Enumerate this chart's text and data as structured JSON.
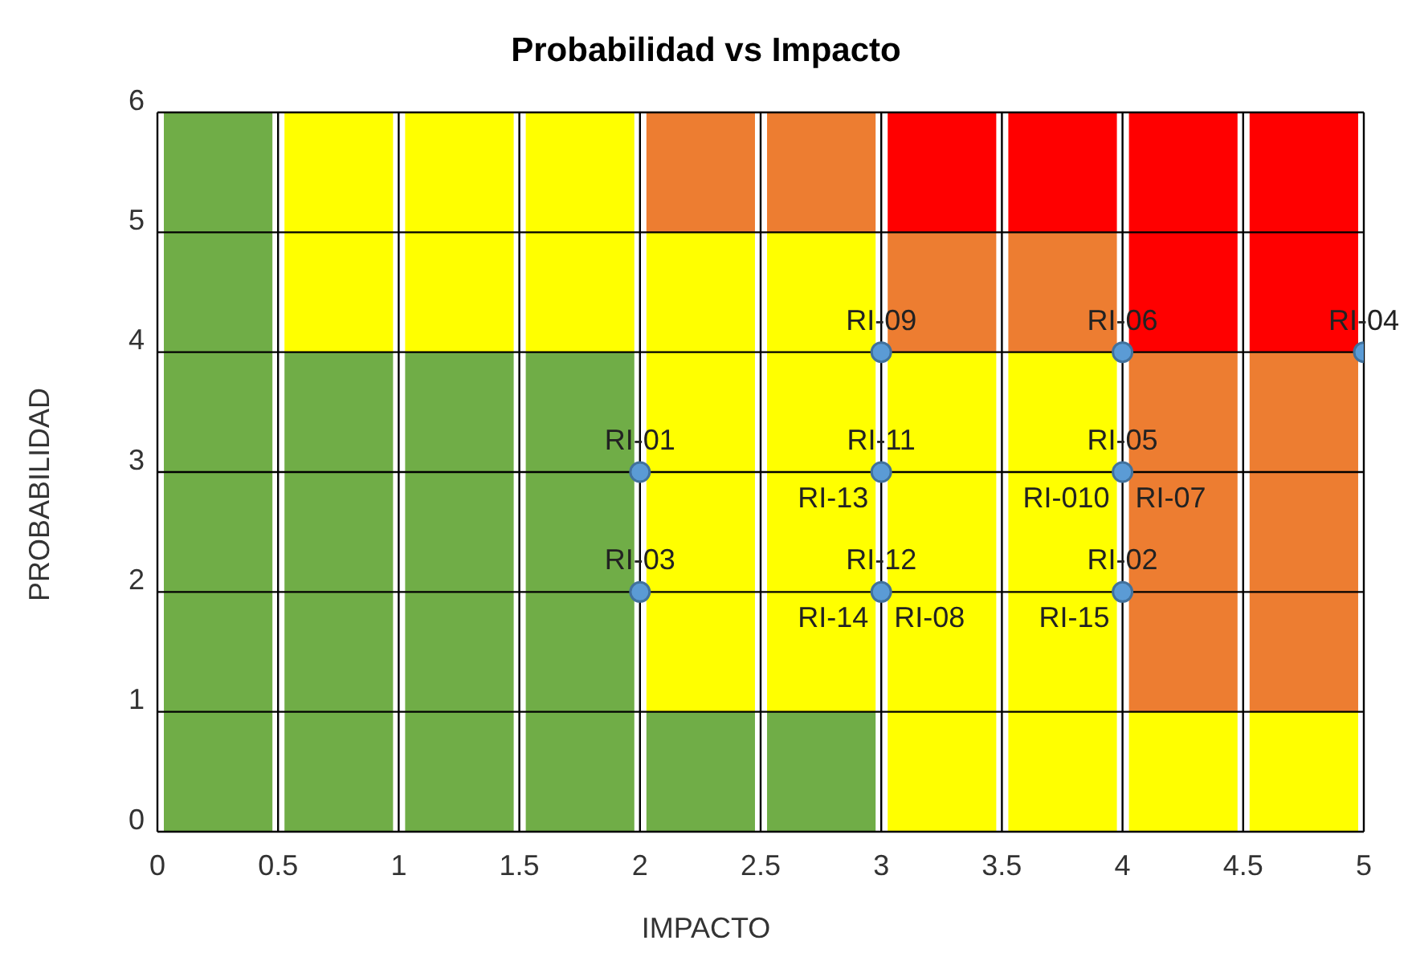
{
  "chart_data": {
    "type": "bar",
    "stacked": true,
    "title": "Probabilidad vs Impacto",
    "xlabel": "IMPACTO",
    "ylabel": "PROBABILIDAD",
    "x": [
      0.25,
      0.75,
      1.25,
      1.75,
      2.25,
      2.75,
      3.25,
      3.75,
      4.25,
      4.75
    ],
    "series": [
      {
        "color": "#70ad47",
        "values": [
          6,
          4,
          4,
          4,
          1,
          1,
          0,
          0,
          0,
          0
        ]
      },
      {
        "color": "#ffff00",
        "values": [
          0,
          2,
          2,
          2,
          4,
          4,
          4,
          4,
          1,
          1
        ]
      },
      {
        "color": "#ed7d31",
        "values": [
          0,
          0,
          0,
          0,
          1,
          1,
          1,
          1,
          3,
          3
        ]
      },
      {
        "color": "#ff0000",
        "values": [
          0,
          0,
          0,
          0,
          0,
          0,
          1,
          1,
          2,
          2
        ]
      },
      {
        "type": "scatter",
        "color": "#5b9bd5",
        "x": [
          2,
          2,
          3,
          3,
          3,
          4,
          4,
          4,
          5
        ],
        "values": [
          3,
          2,
          4,
          3,
          2,
          4,
          3,
          2,
          4
        ]
      }
    ],
    "xlim": [
      0,
      5
    ],
    "xticks": [
      0,
      0.5,
      1,
      1.5,
      2,
      2.5,
      3,
      3.5,
      4,
      4.5,
      5
    ],
    "ylim": [
      0,
      6
    ],
    "yticks": [
      0,
      1,
      2,
      3,
      4,
      5,
      6
    ],
    "grid": true,
    "legend": false,
    "marker": "circle",
    "annotations": [
      {
        "text": "RI-01",
        "x": 2,
        "y": 3
      },
      {
        "text": "RI-03",
        "x": 2,
        "y": 2
      },
      {
        "text": "RI-09",
        "x": 3,
        "y": 4
      },
      {
        "text": "RI-11",
        "x": 3,
        "y": 3
      },
      {
        "text": "RI-13",
        "x": 3,
        "y": 3
      },
      {
        "text": "RI-12",
        "x": 3,
        "y": 2
      },
      {
        "text": "RI-14",
        "x": 3,
        "y": 2
      },
      {
        "text": "RI-08",
        "x": 3,
        "y": 2
      },
      {
        "text": "RI-06",
        "x": 4,
        "y": 4
      },
      {
        "text": "RI-05",
        "x": 4,
        "y": 3
      },
      {
        "text": "RI-010",
        "x": 4,
        "y": 3
      },
      {
        "text": "RI-07",
        "x": 4,
        "y": 3
      },
      {
        "text": "RI-02",
        "x": 4,
        "y": 2
      },
      {
        "text": "RI-15",
        "x": 4,
        "y": 2
      },
      {
        "text": "RI-04",
        "x": 5,
        "y": 4
      }
    ]
  }
}
